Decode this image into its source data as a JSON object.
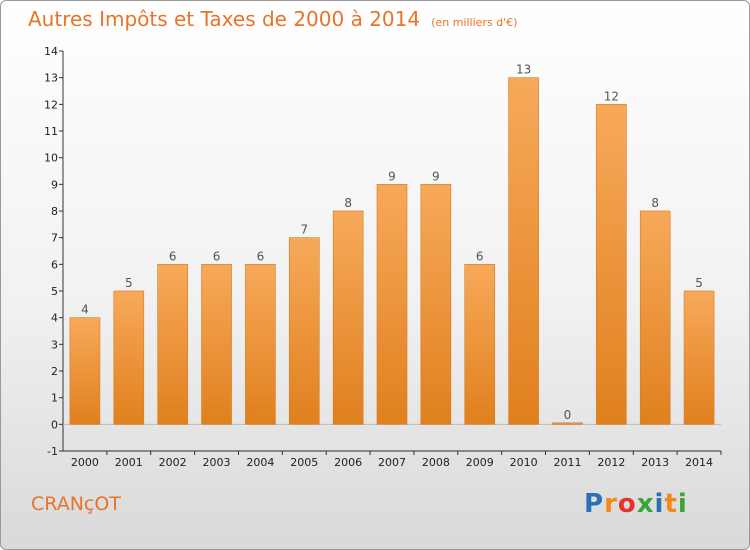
{
  "header": {
    "title": "Autres Impôts et Taxes de 2000 à 2014",
    "unit": "(en milliers d'€)"
  },
  "commune": "CRANçOT",
  "logo": {
    "text": "Proxiti",
    "letters": [
      {
        "char": "P",
        "color": "#2b6fb6"
      },
      {
        "char": "r",
        "color": "#f08a1c"
      },
      {
        "char": "o",
        "color": "#e6332a"
      },
      {
        "char": "x",
        "color": "#3aa635"
      },
      {
        "char": "i",
        "color": "#2b6fb6"
      },
      {
        "char": "t",
        "color": "#f08a1c"
      },
      {
        "char": "i",
        "color": "#3aa635"
      }
    ]
  },
  "colors": {
    "bar_light": "#f7a95a",
    "bar_dark": "#e0801e",
    "accent": "#e8742a"
  },
  "chart_data": {
    "type": "bar",
    "title": "Autres Impôts et Taxes de 2000 à 2014",
    "subtitle": "(en milliers d'€)",
    "categories": [
      "2000",
      "2001",
      "2002",
      "2003",
      "2004",
      "2005",
      "2006",
      "2007",
      "2008",
      "2009",
      "2010",
      "2011",
      "2012",
      "2013",
      "2014"
    ],
    "values": [
      4,
      5,
      6,
      6,
      6,
      7,
      8,
      9,
      9,
      6,
      13,
      0,
      12,
      8,
      5
    ],
    "ylim": [
      -1,
      14
    ],
    "yticks": [
      "-1",
      "0",
      "1",
      "2",
      "3",
      "4",
      "5",
      "6",
      "7",
      "8",
      "9",
      "10",
      "11",
      "12",
      "13",
      "14"
    ],
    "grid": false,
    "legend": "none"
  }
}
